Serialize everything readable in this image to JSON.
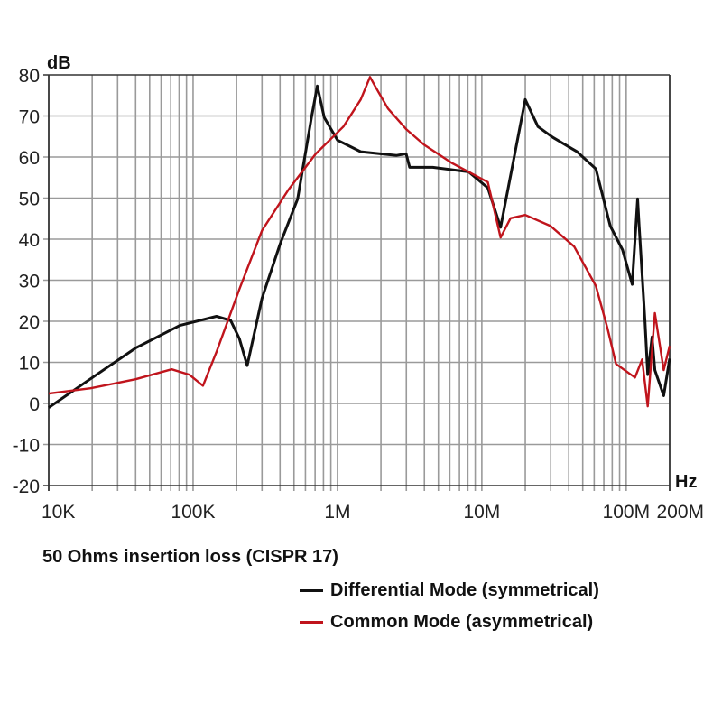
{
  "chart_data": {
    "type": "line",
    "title": "50 Ohms insertion loss (CISPR 17)",
    "xlabel": "Hz",
    "ylabel": "dB",
    "xscale": "log",
    "xlim": [
      10000,
      200000000
    ],
    "ylim": [
      -20,
      80
    ],
    "grid": true,
    "x_tick_labels": [
      {
        "value": 10000,
        "label": "10K"
      },
      {
        "value": 100000,
        "label": "100K"
      },
      {
        "value": 1000000,
        "label": "1M"
      },
      {
        "value": 10000000,
        "label": "10M"
      },
      {
        "value": 100000000,
        "label": "100M"
      },
      {
        "value": 200000000,
        "label": "200M"
      }
    ],
    "y_ticks": [
      80,
      70,
      60,
      50,
      40,
      30,
      20,
      10,
      0,
      -10,
      -20
    ],
    "y_tick_labels": [
      "80",
      "70",
      "60",
      "50",
      "40",
      "30",
      "20",
      "10",
      "0",
      "-10",
      "-20"
    ],
    "legend_position": "bottom-right",
    "series": [
      {
        "name": "Differential Mode (symmetrical)",
        "color": "#111111",
        "points": [
          [
            10000,
            -1
          ],
          [
            19500,
            6
          ],
          [
            40000,
            13.5
          ],
          [
            81000,
            19
          ],
          [
            145000,
            21.2
          ],
          [
            182000,
            20.2
          ],
          [
            209000,
            15.8
          ],
          [
            237000,
            9.2
          ],
          [
            300000,
            25.6
          ],
          [
            400000,
            38.8
          ],
          [
            530000,
            49.8
          ],
          [
            660000,
            69.6
          ],
          [
            725000,
            77.3
          ],
          [
            810000,
            69.6
          ],
          [
            1000000,
            64.1
          ],
          [
            1450000,
            61.3
          ],
          [
            2570000,
            60.4
          ],
          [
            2990000,
            60.8
          ],
          [
            3160000,
            57.5
          ],
          [
            4570000,
            57.5
          ],
          [
            8100000,
            56.4
          ],
          [
            11000000,
            52.5
          ],
          [
            13500000,
            42.9
          ],
          [
            20000000,
            74
          ],
          [
            24500000,
            67.4
          ],
          [
            31000000,
            64.8
          ],
          [
            45700000,
            61.3
          ],
          [
            61700000,
            57.1
          ],
          [
            77600000,
            43.2
          ],
          [
            94400000,
            37.4
          ],
          [
            110000000,
            29
          ],
          [
            120000000,
            49.8
          ],
          [
            123000000,
            43.2
          ],
          [
            135000000,
            19.8
          ],
          [
            141000000,
            7
          ],
          [
            151000000,
            16.2
          ],
          [
            158000000,
            8.1
          ],
          [
            182000000,
            1.9
          ],
          [
            200000000,
            10.9
          ]
        ]
      },
      {
        "name": "Common Mode (asymmetrical)",
        "color": "#c0141c",
        "points": [
          [
            10000,
            2.4
          ],
          [
            19500,
            3.7
          ],
          [
            40000,
            5.9
          ],
          [
            71000,
            8.3
          ],
          [
            94000,
            7
          ],
          [
            117000,
            4.3
          ],
          [
            145000,
            12.5
          ],
          [
            209000,
            27.8
          ],
          [
            300000,
            42.1
          ],
          [
            457000,
            52
          ],
          [
            708000,
            60.8
          ],
          [
            1100000,
            67.4
          ],
          [
            1450000,
            74
          ],
          [
            1680000,
            79.5
          ],
          [
            1820000,
            77.3
          ],
          [
            2240000,
            71.8
          ],
          [
            2990000,
            66.8
          ],
          [
            3980000,
            63
          ],
          [
            6170000,
            58.6
          ],
          [
            8100000,
            56.4
          ],
          [
            11000000,
            53.9
          ],
          [
            13500000,
            40.4
          ],
          [
            15800000,
            45.1
          ],
          [
            20000000,
            45.9
          ],
          [
            29900000,
            43.2
          ],
          [
            43600000,
            38.2
          ],
          [
            61700000,
            28.6
          ],
          [
            74100000,
            18.4
          ],
          [
            85100000,
            9.6
          ],
          [
            115000000,
            6.3
          ],
          [
            129000000,
            10.7
          ],
          [
            141000000,
            -0.7
          ],
          [
            158000000,
            22
          ],
          [
            182000000,
            8.1
          ],
          [
            200000000,
            14
          ]
        ]
      }
    ]
  }
}
